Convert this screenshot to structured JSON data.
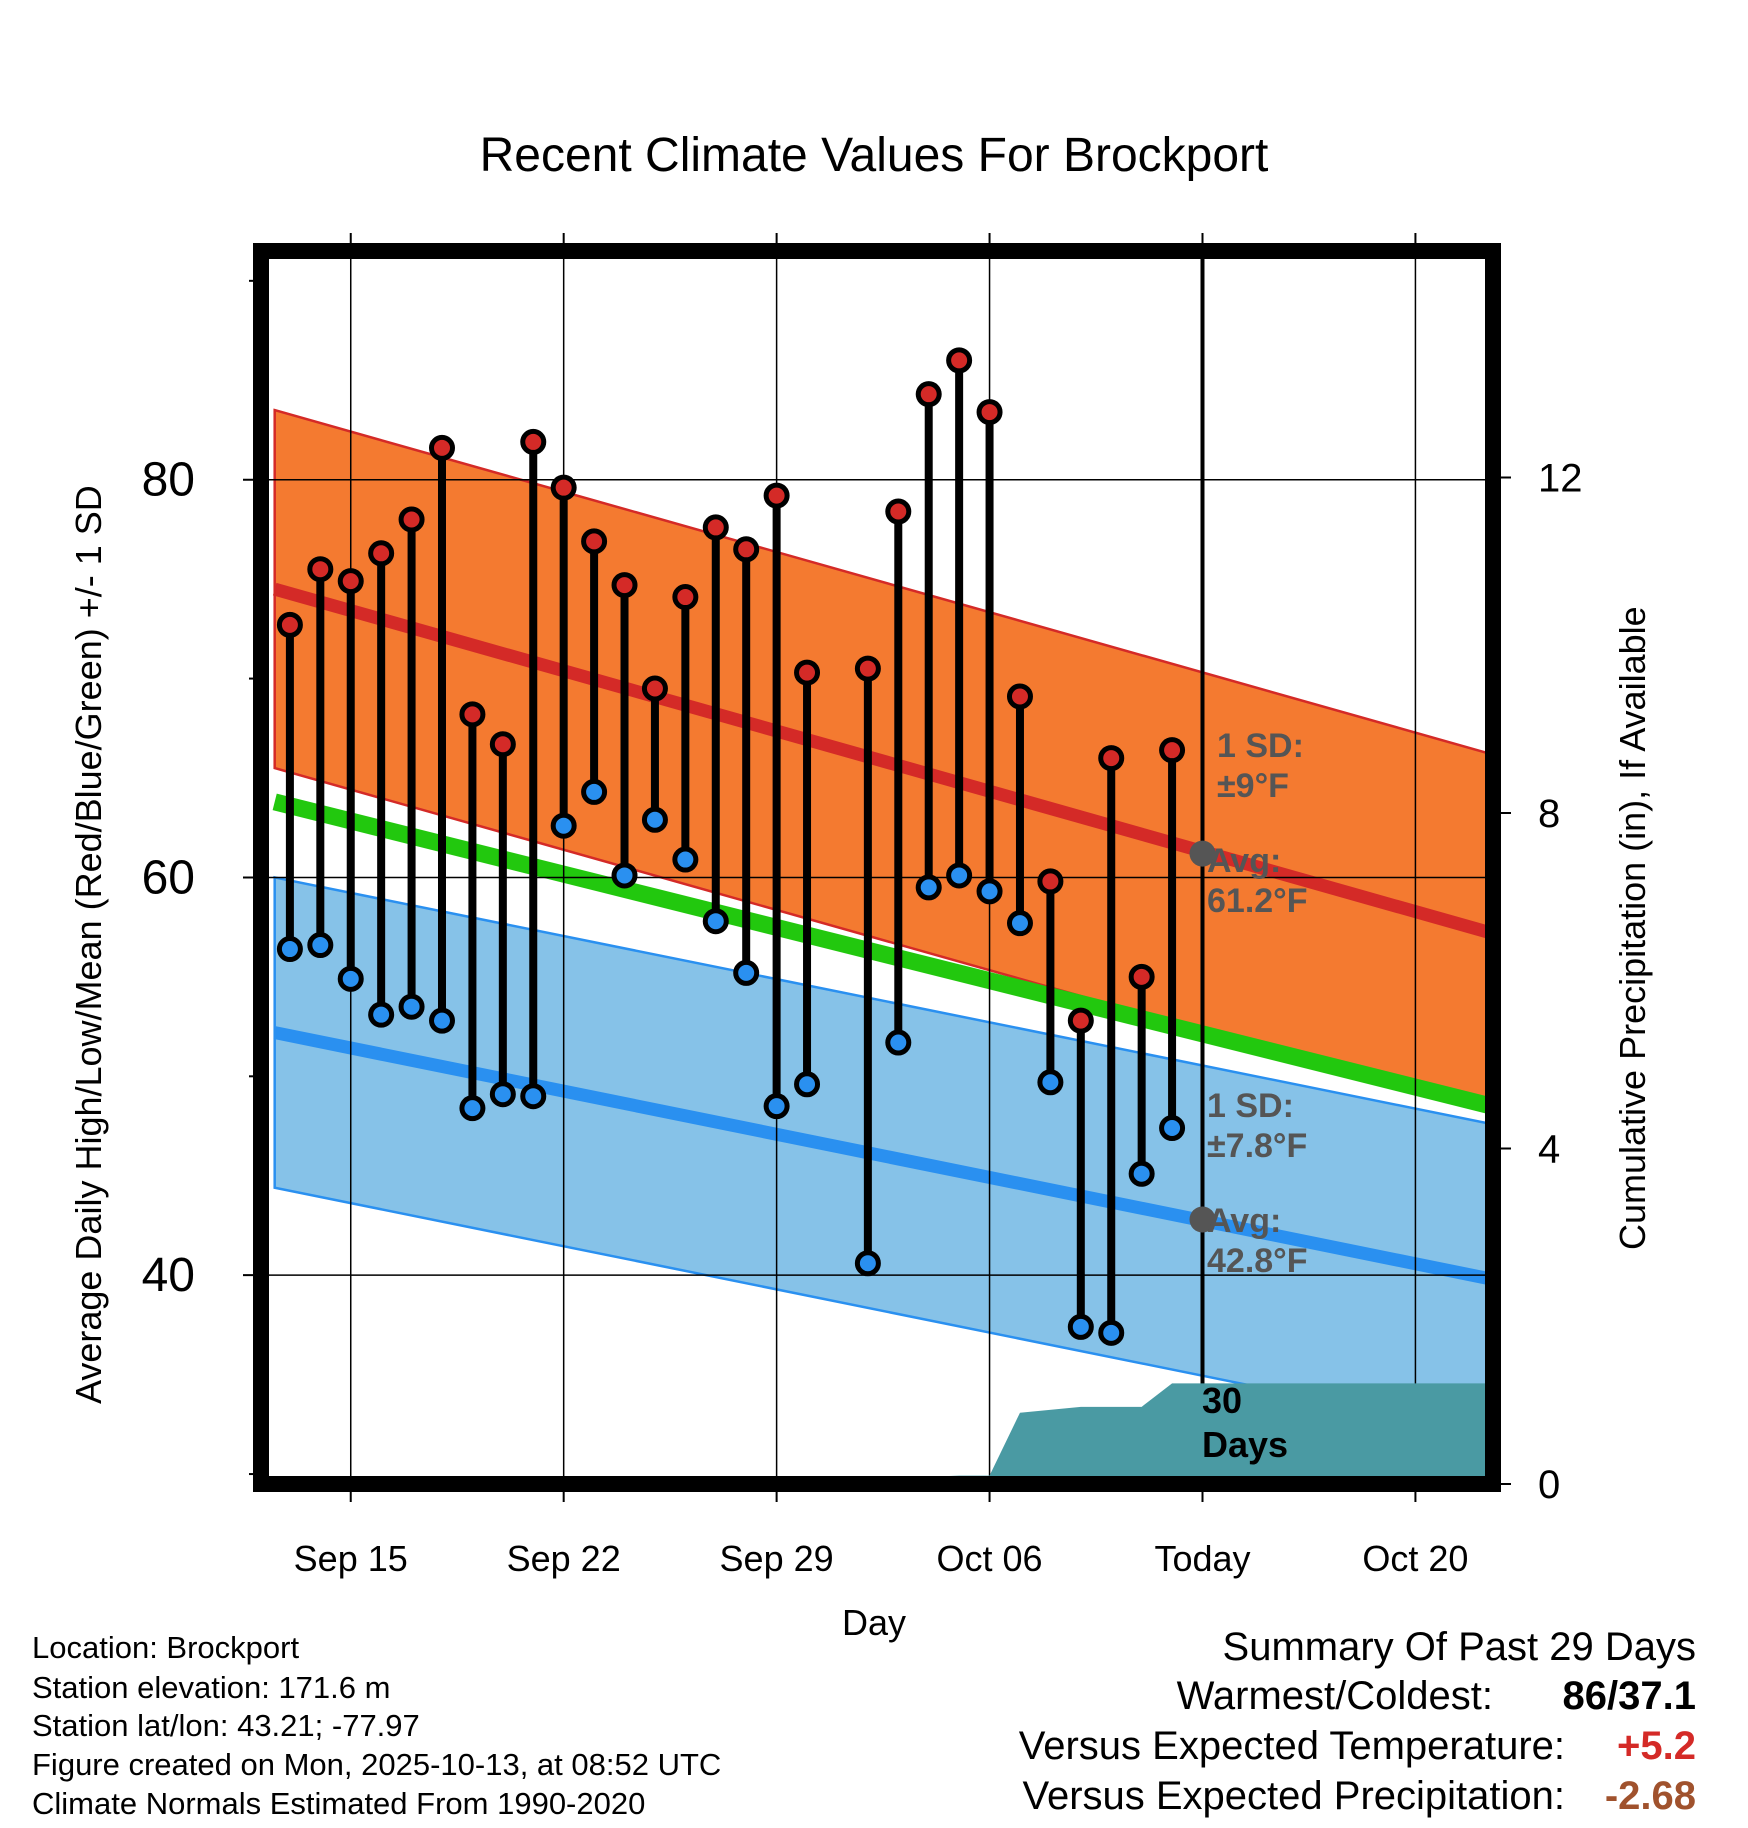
{
  "chart_data": {
    "type": "line",
    "title": "Recent Climate Values For Brockport",
    "xlabel": "Day",
    "ylabel": "Average Daily High/Low/Mean (Red/Blue/Green) +/- 1 SD",
    "y2label": "Cumulative Precipitation (in), If Available",
    "ylim": [
      29.5,
      91.5
    ],
    "y2lim": [
      0,
      14.7
    ],
    "xlim": [
      -2.95,
      37.55
    ],
    "y_ticks": [
      40,
      60,
      80
    ],
    "y_minor_ticks": [
      30,
      50,
      70,
      90
    ],
    "y2_ticks": [
      0,
      4,
      8,
      12
    ],
    "x_ticks": [
      {
        "day": 0,
        "label": "Sep 15"
      },
      {
        "day": 7,
        "label": "Sep 22"
      },
      {
        "day": 14,
        "label": "Sep 29"
      },
      {
        "day": 21,
        "label": "Oct 06"
      },
      {
        "day": 28,
        "label": "Today"
      },
      {
        "day": 35,
        "label": "Oct 20"
      }
    ],
    "today_day": 28,
    "grid": true,
    "normals": {
      "start_day": -2.5,
      "end_day": 37.5,
      "high_mean": [
        74.5,
        57.2
      ],
      "high_sd": 9,
      "low_mean": [
        52.2,
        39.8
      ],
      "low_sd": 7.8,
      "mean": [
        63.8,
        48.5
      ],
      "colors": {
        "high_band": "#f47a30",
        "high_line": "#d42a27",
        "low_band": "#86c2e8",
        "low_line": "#2a90f0",
        "mean_line": "#22c80e"
      }
    },
    "daily": {
      "days": [
        -2,
        -1,
        0,
        1,
        2,
        3,
        4,
        5,
        6,
        7,
        8,
        9,
        10,
        11,
        12,
        13,
        14,
        15,
        17,
        18,
        19,
        20,
        21,
        22,
        23,
        24,
        25,
        26,
        27
      ],
      "highs": [
        72.7,
        75.5,
        74.9,
        76.3,
        78.0,
        81.6,
        68.2,
        66.7,
        81.9,
        79.6,
        76.9,
        74.7,
        69.5,
        74.1,
        77.6,
        76.5,
        79.2,
        70.3,
        70.5,
        78.4,
        84.3,
        86.0,
        83.4,
        69.1,
        59.8,
        52.8,
        66.0,
        55.0,
        66.4
      ],
      "lows": [
        56.4,
        56.6,
        54.9,
        53.1,
        53.5,
        52.8,
        48.4,
        49.1,
        49.0,
        62.6,
        64.3,
        60.1,
        62.9,
        60.9,
        57.8,
        55.2,
        48.5,
        49.6,
        40.6,
        51.7,
        59.5,
        60.1,
        59.3,
        57.7,
        49.7,
        37.4,
        37.1,
        45.1,
        47.4
      ],
      "high_color": "#d42a27",
      "low_color": "#2a90f0"
    },
    "precipitation": {
      "days": [
        -2.5,
        13.0,
        17.0,
        20.0,
        21.0,
        22.0,
        24.0,
        26.0,
        27.0,
        37.5
      ],
      "values": [
        0,
        0.05,
        0.06,
        0.1,
        0.1,
        0.85,
        0.92,
        0.92,
        1.2,
        1.2
      ],
      "color": "#4a9aa3"
    },
    "annotations": {
      "high_sd_label": "1 SD:",
      "high_sd_value": "±9°F",
      "high_avg_label": "Avg:",
      "high_avg_value": "61.2°F",
      "high_avg_marker": 61.2,
      "low_sd_label": "1 SD:",
      "low_sd_value": "±7.8°F",
      "low_avg_label": "Avg:",
      "low_avg_value": "42.8°F",
      "low_avg_marker": 42.8,
      "days_number": "30",
      "days_word": "Days"
    }
  },
  "station": {
    "location": "Location: Brockport",
    "elevation": "Station elevation: 171.6 m",
    "latlon": "Station lat/lon: 43.21; -77.97",
    "created": "Figure created on Mon, 2025-10-13, at 08:52 UTC",
    "normals_period": "Climate Normals Estimated From 1990-2020"
  },
  "summary": {
    "heading": "Summary Of Past 29 Days",
    "warmest_label": "Warmest/Coldest:",
    "warmest_value": "86/37.1",
    "temp_label": "Versus Expected Temperature:",
    "temp_value": "+5.2",
    "temp_color": "#d42a27",
    "precip_label": "Versus Expected Precipitation:",
    "precip_value": "-2.68",
    "precip_color": "#a0522d"
  }
}
